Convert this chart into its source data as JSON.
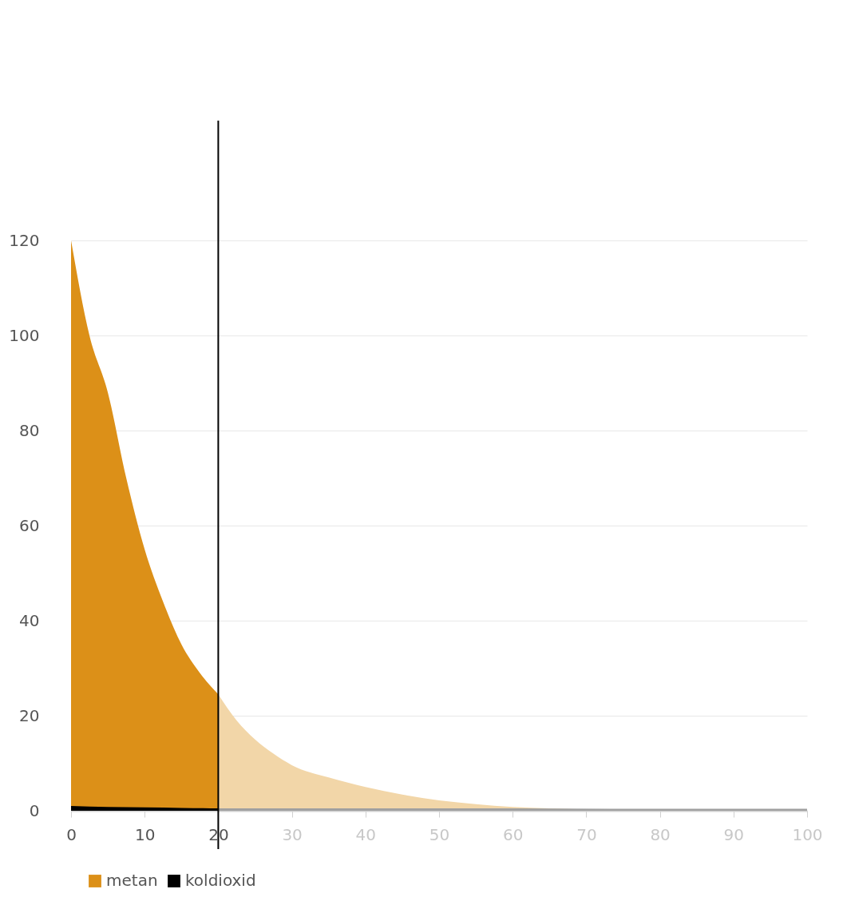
{
  "chart_data": {
    "type": "area",
    "series": [
      {
        "name": "metan",
        "color": "#dc9018",
        "x": [
          0,
          2.5,
          5,
          7.5,
          10,
          12.5,
          15,
          17.5,
          20
        ],
        "values": [
          120,
          100,
          88,
          70,
          55,
          44,
          35,
          29,
          24.5
        ]
      },
      {
        "color": "#f2d6a8",
        "x": [
          20,
          22.5,
          25,
          27.5,
          30,
          35,
          40,
          45,
          50,
          55,
          60,
          65,
          70,
          80,
          90,
          100
        ],
        "values": [
          24.5,
          19,
          15,
          12,
          9.6,
          7,
          5,
          3.4,
          2.2,
          1.4,
          0.8,
          0.5,
          0.3,
          0.1,
          0,
          0
        ]
      },
      {
        "name": "koldioxid",
        "color": "#000000",
        "x": [
          0,
          5,
          10,
          15,
          20
        ],
        "values": [
          1.0,
          0.8,
          0.7,
          0.6,
          0.5
        ]
      },
      {
        "color": "#a0a0a0",
        "x": [
          20,
          40,
          60,
          80,
          100
        ],
        "values": [
          0.5,
          0.5,
          0.5,
          0.4,
          0.4
        ]
      }
    ],
    "xlim": [
      0,
      100
    ],
    "xticks": [
      0,
      10,
      20,
      30,
      40,
      50,
      60,
      70,
      80,
      90,
      100
    ],
    "ylim": [
      0,
      120
    ],
    "yticks": [
      0,
      20,
      40,
      60,
      80,
      100,
      120
    ],
    "grid": "y",
    "legend": "bottom",
    "ref_lines": [
      {
        "axis": "x",
        "value": 20,
        "color": "#000000"
      }
    ]
  }
}
